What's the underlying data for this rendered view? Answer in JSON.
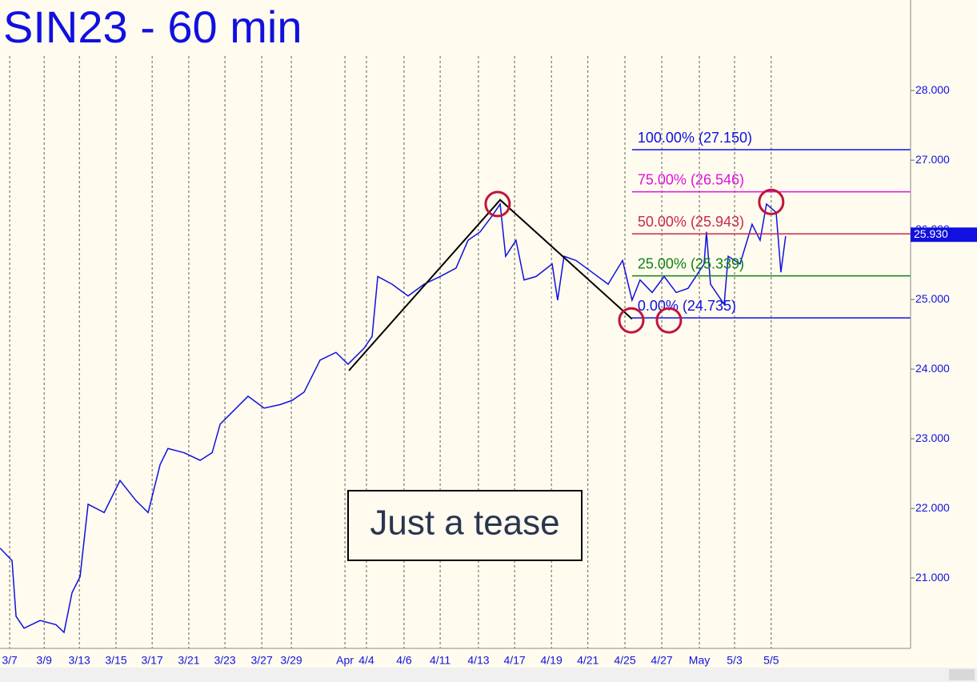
{
  "chart_data": {
    "type": "line",
    "title": "SIN23 - 60 min",
    "color": "#1010e0",
    "x": [
      -0.53,
      0.13,
      0.35,
      0.79,
      1.67,
      2.54,
      2.98,
      3.42,
      3.86,
      4.3,
      5.18,
      6.05,
      6.93,
      7.59,
      8.25,
      8.68,
      9.56,
      10.44,
      11.1,
      11.54,
      12.19,
      13.07,
      13.95,
      14.82,
      15.48,
      16.14,
      17.02,
      17.89,
      18.55,
      19.43,
      19.87,
      20.18,
      20.96,
      21.84,
      22.72,
      23.6,
      24.47,
      25.13,
      25.79,
      26.45,
      26.89,
      27.19,
      27.76,
      28.2,
      28.86,
      29.74,
      30.04,
      30.39,
      31.05,
      31.93,
      32.81,
      33.6,
      34.12,
      34.56,
      35.22,
      35.88,
      36.54,
      37.19,
      38.07,
      38.2,
      38.42,
      39.17,
      39.39,
      40.04,
      40.7,
      41.14,
      41.49,
      42.02,
      42.28,
      42.54
    ],
    "values": [
      21.43,
      21.25,
      20.45,
      20.28,
      20.39,
      20.33,
      20.22,
      20.79,
      21.02,
      22.06,
      21.94,
      22.4,
      22.11,
      21.94,
      22.63,
      22.86,
      22.8,
      22.69,
      22.8,
      23.21,
      23.38,
      23.61,
      23.44,
      23.49,
      23.55,
      23.67,
      24.13,
      24.24,
      24.07,
      24.3,
      24.47,
      25.33,
      25.22,
      25.05,
      25.22,
      25.33,
      25.45,
      25.85,
      25.97,
      26.2,
      26.37,
      25.62,
      25.85,
      25.28,
      25.33,
      25.51,
      24.99,
      25.62,
      25.56,
      25.39,
      25.22,
      25.56,
      24.99,
      25.28,
      25.1,
      25.33,
      25.1,
      25.16,
      25.51,
      25.97,
      25.22,
      24.93,
      25.62,
      25.51,
      26.08,
      25.85,
      26.37,
      26.25,
      25.39,
      25.91
    ],
    "xlim": [
      -0.53,
      49.39
    ],
    "ylim": [
      19.99,
      29.3
    ],
    "xticks": [
      {
        "value": 0,
        "label": "3/7"
      },
      {
        "value": 1.89,
        "label": "3/9"
      },
      {
        "value": 3.82,
        "label": "3/13"
      },
      {
        "value": 5.83,
        "label": "3/15"
      },
      {
        "value": 7.81,
        "label": "3/17"
      },
      {
        "value": 9.82,
        "label": "3/21"
      },
      {
        "value": 11.8,
        "label": "3/23"
      },
      {
        "value": 13.82,
        "label": "3/27"
      },
      {
        "value": 15.44,
        "label": "3/29"
      },
      {
        "value": 18.38,
        "label": "Apr"
      },
      {
        "value": 19.56,
        "label": "4/4"
      },
      {
        "value": 21.62,
        "label": "4/6"
      },
      {
        "value": 23.6,
        "label": "4/11"
      },
      {
        "value": 25.7,
        "label": "4/13"
      },
      {
        "value": 27.68,
        "label": "4/17"
      },
      {
        "value": 29.7,
        "label": "4/19"
      },
      {
        "value": 31.7,
        "label": "4/21"
      },
      {
        "value": 33.73,
        "label": "4/25"
      },
      {
        "value": 35.75,
        "label": "4/27"
      },
      {
        "value": 37.81,
        "label": "May"
      },
      {
        "value": 39.74,
        "label": "5/3"
      },
      {
        "value": 41.75,
        "label": "5/5"
      }
    ],
    "yticks": [
      {
        "value": 21,
        "label": "21.000"
      },
      {
        "value": 22,
        "label": "22.000"
      },
      {
        "value": 23,
        "label": "23.000"
      },
      {
        "value": 24,
        "label": "24.000"
      },
      {
        "value": 25,
        "label": "25.000"
      },
      {
        "value": 26,
        "label": "26.000"
      },
      {
        "value": 27,
        "label": "27.000"
      },
      {
        "value": 28,
        "label": "28.000"
      }
    ],
    "grid": true,
    "last_price": {
      "value": 25.93,
      "label": "25.930"
    },
    "levels": [
      {
        "label": "100.00% (27.150)",
        "value": 27.15,
        "color": "#1010e0"
      },
      {
        "label": "75.00% (26.546)",
        "value": 26.546,
        "color": "#e010e0"
      },
      {
        "label": "50.00% (25.943)",
        "value": 25.943,
        "color": "#c8284a"
      },
      {
        "label": "25.00% (25.339)",
        "value": 25.339,
        "color": "#108010"
      },
      {
        "label": "0.00% (24.735)",
        "value": 24.735,
        "color": "#1010e0"
      }
    ],
    "levels_from_x": 34.12,
    "trend_line": {
      "x": [
        18.6,
        26.89,
        34.12
      ],
      "values": [
        23.98,
        26.43,
        24.72
      ],
      "color": "#000000"
    },
    "circles": {
      "x": [
        26.75,
        34.08,
        36.14,
        41.75
      ],
      "values": [
        26.37,
        24.7,
        24.7,
        26.4
      ],
      "color": "#c0143c"
    },
    "annotation": "Just a tease"
  }
}
